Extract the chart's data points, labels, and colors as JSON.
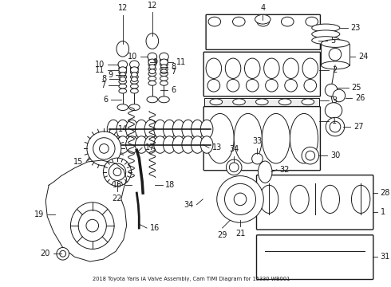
{
  "title": "2018 Toyota Yaris iA Valve Assembly, Cam TIMI Diagram for 15330-WB001",
  "bg_color": "#ffffff",
  "line_color": "#1a1a1a",
  "font_size": 7.0
}
